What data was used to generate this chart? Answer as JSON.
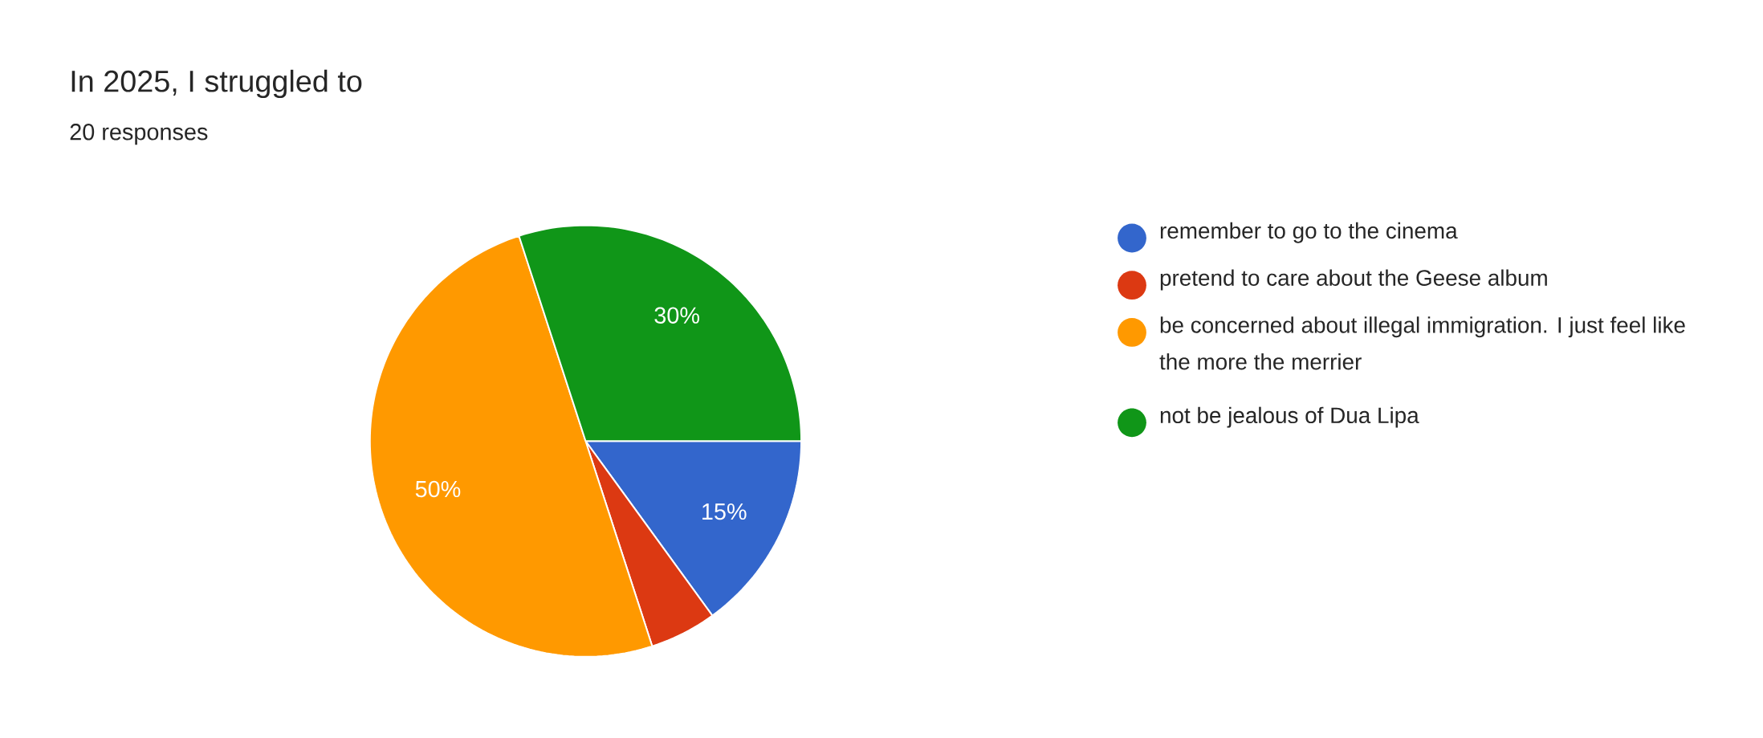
{
  "chart_data": {
    "type": "pie",
    "title": "In 2025, I struggled to",
    "subtitle": "20 responses",
    "categories": [
      "remember to go to the cinema",
      "pretend to care about the Geese album",
      "be concerned about illegal immigration. I just feel like the more the merrier",
      "not be jealous of Dua Lipa"
    ],
    "values": [
      15,
      5,
      50,
      30
    ],
    "colors": [
      "#3366cc",
      "#dc3912",
      "#ff9900",
      "#109618"
    ],
    "value_labels": [
      "15%",
      null,
      "50%",
      "30%"
    ],
    "legend": "right"
  }
}
